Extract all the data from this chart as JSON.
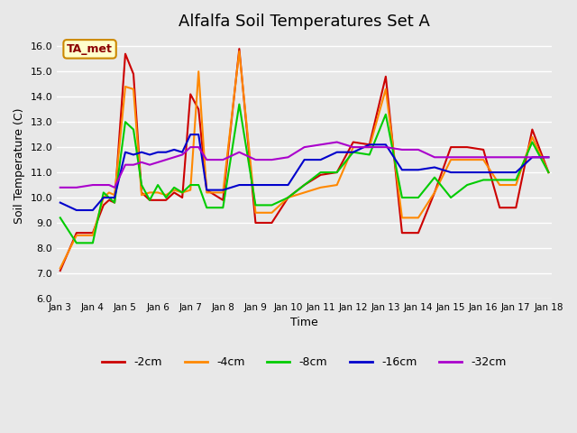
{
  "title": "Alfalfa Soil Temperatures Set A",
  "xlabel": "Time",
  "ylabel": "Soil Temperature (C)",
  "annotation": "TA_met",
  "ylim": [
    6.0,
    16.5
  ],
  "yticks": [
    6.0,
    7.0,
    8.0,
    9.0,
    10.0,
    11.0,
    12.0,
    13.0,
    14.0,
    15.0,
    16.0
  ],
  "series": {
    "-2cm": {
      "color": "#cc0000",
      "x_days": [
        3,
        3.5,
        4,
        4.33,
        4.5,
        4.67,
        5,
        5.25,
        5.5,
        5.75,
        6,
        6.25,
        6.5,
        6.75,
        7,
        7.25,
        7.5,
        8,
        8.5,
        9,
        9.5,
        10,
        10.5,
        11,
        11.5,
        12,
        12.5,
        13,
        13.5,
        14,
        14.5,
        15,
        15.5,
        16,
        16.5,
        17,
        17.5,
        18
      ],
      "values": [
        7.1,
        8.6,
        8.6,
        9.7,
        9.9,
        9.8,
        15.7,
        14.9,
        10.2,
        9.9,
        9.9,
        9.9,
        10.2,
        10.0,
        14.1,
        13.5,
        10.3,
        9.9,
        15.9,
        9.0,
        9.0,
        10.0,
        10.5,
        10.9,
        11.0,
        12.2,
        12.1,
        14.8,
        8.6,
        8.6,
        10.2,
        12.0,
        12.0,
        11.9,
        9.6,
        9.6,
        12.7,
        11.0
      ]
    },
    "-4cm": {
      "color": "#ff8800",
      "x_days": [
        3,
        3.5,
        4,
        4.33,
        4.5,
        4.67,
        5,
        5.25,
        5.5,
        5.75,
        6,
        6.25,
        6.5,
        6.75,
        7,
        7.25,
        7.5,
        8,
        8.5,
        9,
        9.5,
        10,
        10.5,
        11,
        11.5,
        12,
        12.5,
        13,
        13.5,
        14,
        14.5,
        15,
        15.5,
        16,
        16.5,
        17,
        17.5,
        18
      ],
      "values": [
        7.2,
        8.5,
        8.5,
        10.0,
        10.2,
        10.1,
        14.4,
        14.3,
        10.1,
        10.2,
        10.2,
        10.1,
        10.3,
        10.2,
        10.3,
        15.0,
        10.2,
        10.2,
        15.8,
        9.4,
        9.4,
        10.0,
        10.2,
        10.4,
        10.5,
        12.0,
        12.0,
        14.3,
        9.2,
        9.2,
        10.2,
        11.5,
        11.5,
        11.5,
        10.5,
        10.5,
        12.4,
        11.0
      ]
    },
    "-8cm": {
      "color": "#00cc00",
      "x_days": [
        3,
        3.5,
        4,
        4.33,
        4.5,
        4.67,
        5,
        5.25,
        5.5,
        5.75,
        6,
        6.25,
        6.5,
        6.75,
        7,
        7.25,
        7.5,
        8,
        8.5,
        9,
        9.5,
        10,
        10.5,
        11,
        11.5,
        12,
        12.5,
        13,
        13.5,
        14,
        14.5,
        15,
        15.5,
        16,
        16.5,
        17,
        17.5,
        18
      ],
      "values": [
        9.2,
        8.2,
        8.2,
        10.2,
        10.0,
        9.8,
        13.0,
        12.7,
        10.5,
        9.9,
        10.5,
        10.0,
        10.4,
        10.2,
        10.5,
        10.5,
        9.6,
        9.6,
        13.7,
        9.7,
        9.7,
        10.0,
        10.5,
        11.0,
        11.0,
        11.8,
        11.7,
        13.3,
        10.0,
        10.0,
        10.8,
        10.0,
        10.5,
        10.7,
        10.7,
        10.7,
        12.2,
        11.0
      ]
    },
    "-16cm": {
      "color": "#0000cc",
      "x_days": [
        3,
        3.5,
        4,
        4.33,
        4.5,
        4.67,
        5,
        5.25,
        5.5,
        5.75,
        6,
        6.25,
        6.5,
        6.75,
        7,
        7.25,
        7.5,
        8,
        8.5,
        9,
        9.5,
        10,
        10.5,
        11,
        11.5,
        12,
        12.5,
        13,
        13.5,
        14,
        14.5,
        15,
        15.5,
        16,
        16.5,
        17,
        17.5,
        18
      ],
      "values": [
        9.8,
        9.5,
        9.5,
        10.0,
        10.0,
        10.0,
        11.8,
        11.7,
        11.8,
        11.7,
        11.8,
        11.8,
        11.9,
        11.8,
        12.5,
        12.5,
        10.3,
        10.3,
        10.5,
        10.5,
        10.5,
        10.5,
        11.5,
        11.5,
        11.8,
        11.8,
        12.1,
        12.1,
        11.1,
        11.1,
        11.2,
        11.0,
        11.0,
        11.0,
        11.0,
        11.0,
        11.6,
        11.6
      ]
    },
    "-32cm": {
      "color": "#aa00cc",
      "x_days": [
        3,
        3.5,
        4,
        4.33,
        4.5,
        4.67,
        5,
        5.25,
        5.5,
        5.75,
        6,
        6.25,
        6.5,
        6.75,
        7,
        7.25,
        7.5,
        8,
        8.5,
        9,
        9.5,
        10,
        10.5,
        11,
        11.5,
        12,
        12.5,
        13,
        13.5,
        14,
        14.5,
        15,
        15.5,
        16,
        16.5,
        17,
        17.5,
        18
      ],
      "values": [
        10.4,
        10.4,
        10.5,
        10.5,
        10.5,
        10.4,
        11.3,
        11.3,
        11.4,
        11.3,
        11.4,
        11.5,
        11.6,
        11.7,
        12.0,
        12.0,
        11.5,
        11.5,
        11.8,
        11.5,
        11.5,
        11.6,
        12.0,
        12.1,
        12.2,
        12.0,
        12.0,
        12.0,
        11.9,
        11.9,
        11.6,
        11.6,
        11.6,
        11.6,
        11.6,
        11.6,
        11.6,
        11.6
      ]
    }
  },
  "bg_color": "#e8e8e8",
  "plot_bg_color": "#e8e8e8",
  "grid_color": "#ffffff",
  "title_fontsize": 13,
  "legend_order": [
    "-2cm",
    "-4cm",
    "-8cm",
    "-16cm",
    "-32cm"
  ],
  "x_tick_days": [
    3,
    4,
    5,
    6,
    7,
    8,
    9,
    10,
    11,
    12,
    13,
    14,
    15,
    16,
    17,
    18
  ],
  "x_tick_labels": [
    "Jan 3",
    "Jan 4",
    "Jan 5",
    "Jan 6",
    "Jan 7",
    "Jan 8",
    "Jan 9",
    "Jan 10",
    "Jan 11",
    "Jan 12",
    "Jan 13",
    "Jan 14",
    "Jan 15",
    "Jan 16",
    "Jan 17",
    "Jan 18"
  ]
}
